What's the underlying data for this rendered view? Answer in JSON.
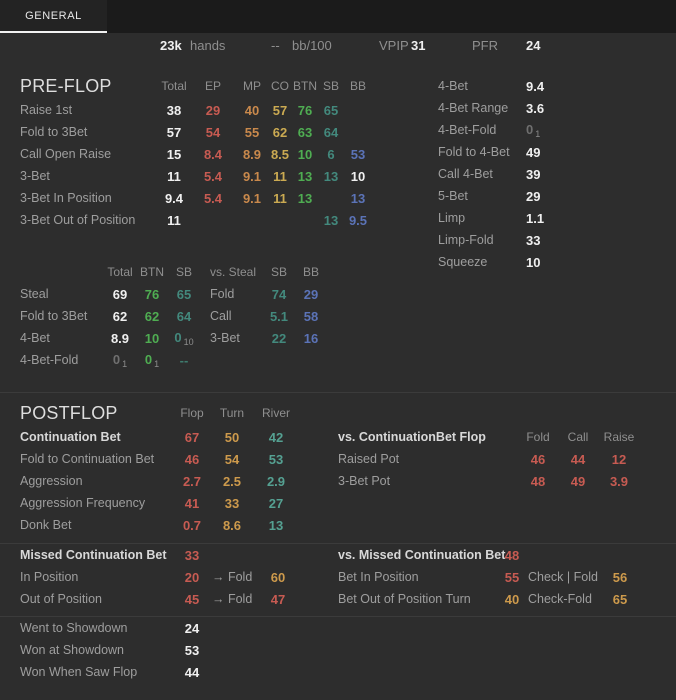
{
  "tab": {
    "label": "GENERAL"
  },
  "summary": {
    "hands_value": "23k",
    "hands_label": "hands",
    "bb100_value": "--",
    "bb100_label": "bb/100",
    "vpip_label": "VPIP",
    "vpip_value": "31",
    "pfr_label": "PFR",
    "pfr_value": "24"
  },
  "palette": {
    "background": "#2d2d2d",
    "tabbar_bg": "#1b1b1b",
    "tab_underline": "#f2f2f2",
    "divider": "#3b3b3b",
    "white_value": "#f0f0f0",
    "label_gray": "#9e9e9e",
    "header_gray": "#8f8f8f",
    "ep_red": "#c75b52",
    "mp_orange": "#c9894c",
    "co_yellow": "#cbaa52",
    "turn_amber": "#cd9a4c",
    "btn_green": "#4fad52",
    "sb_teal": "#43897d",
    "river_teal": "#55a192",
    "bb_blue": "#5b73b7",
    "dim_gray": "#6f6f6f",
    "dim_teal": "#3e7c6e"
  },
  "preflop": {
    "title": "PRE-FLOP",
    "headers": [
      "Total",
      "EP",
      "MP",
      "CO",
      "BTN",
      "SB",
      "BB"
    ],
    "rows": [
      {
        "label": "Raise 1st",
        "cells": [
          [
            "38",
            "W"
          ],
          [
            "29",
            "R"
          ],
          [
            "40",
            "O"
          ],
          [
            "57",
            "Y"
          ],
          [
            "76",
            "G"
          ],
          [
            "65",
            "T"
          ],
          null
        ]
      },
      {
        "label": "Fold to 3Bet",
        "cells": [
          [
            "57",
            "W"
          ],
          [
            "54",
            "R"
          ],
          [
            "55",
            "O"
          ],
          [
            "62",
            "Y"
          ],
          [
            "63",
            "G"
          ],
          [
            "64",
            "T"
          ],
          null
        ]
      },
      {
        "label": "Call Open Raise",
        "cells": [
          [
            "15",
            "W"
          ],
          [
            "8.4",
            "R"
          ],
          [
            "8.9",
            "O"
          ],
          [
            "8.5",
            "Y"
          ],
          [
            "10",
            "G"
          ],
          [
            "6",
            "T"
          ],
          [
            "53",
            "B"
          ]
        ]
      },
      {
        "label": "3-Bet",
        "cells": [
          [
            "11",
            "W"
          ],
          [
            "5.4",
            "R"
          ],
          [
            "9.1",
            "O"
          ],
          [
            "11",
            "Y"
          ],
          [
            "13",
            "G"
          ],
          [
            "13",
            "T"
          ],
          [
            "10",
            "W"
          ]
        ]
      },
      {
        "label": "3-Bet In Position",
        "cells": [
          [
            "9.4",
            "W"
          ],
          [
            "5.4",
            "R"
          ],
          [
            "9.1",
            "O"
          ],
          [
            "11",
            "Y"
          ],
          [
            "13",
            "G"
          ],
          null,
          [
            "13",
            "B"
          ]
        ]
      },
      {
        "label": "3-Bet Out of Position",
        "cells": [
          [
            "11",
            "W"
          ],
          null,
          null,
          null,
          null,
          [
            "13",
            "T"
          ],
          [
            "9.5",
            "B"
          ]
        ]
      }
    ]
  },
  "preflop_right": {
    "rows": [
      {
        "label": "4-Bet",
        "cells": [
          [
            "9.4",
            "W"
          ]
        ]
      },
      {
        "label": "4-Bet Range",
        "cells": [
          [
            "3.6",
            "W"
          ]
        ]
      },
      {
        "label": "4-Bet-Fold",
        "cells": [
          [
            "0",
            "D",
            "1"
          ]
        ]
      },
      {
        "label": "Fold to 4-Bet",
        "cells": [
          [
            "49",
            "W"
          ]
        ]
      },
      {
        "label": "Call 4-Bet",
        "cells": [
          [
            "39",
            "W"
          ]
        ]
      },
      {
        "label": "5-Bet",
        "cells": [
          [
            "29",
            "W"
          ]
        ]
      },
      {
        "label": "Limp",
        "cells": [
          [
            "1.1",
            "W"
          ]
        ]
      },
      {
        "label": "Limp-Fold",
        "cells": [
          [
            "33",
            "W"
          ]
        ]
      },
      {
        "label": "Squeeze",
        "cells": [
          [
            "10",
            "W"
          ]
        ]
      }
    ]
  },
  "steal": {
    "header_label": "",
    "headers": [
      "Total",
      "BTN",
      "SB"
    ],
    "rows": [
      {
        "label": "Steal",
        "cells": [
          [
            "69",
            "W"
          ],
          [
            "76",
            "G"
          ],
          [
            "65",
            "T"
          ]
        ]
      },
      {
        "label": "Fold to 3Bet",
        "cells": [
          [
            "62",
            "W"
          ],
          [
            "62",
            "G"
          ],
          [
            "64",
            "T"
          ]
        ]
      },
      {
        "label": "4-Bet",
        "cells": [
          [
            "8.9",
            "W"
          ],
          [
            "10",
            "G"
          ],
          [
            "0",
            "T",
            "10"
          ]
        ]
      },
      {
        "label": "4-Bet-Fold",
        "cells": [
          [
            "0",
            "D",
            "1"
          ],
          [
            "0",
            "G",
            "1"
          ],
          [
            "--",
            "TD"
          ]
        ]
      }
    ]
  },
  "vs_steal": {
    "header_label": "vs. Steal",
    "headers": [
      "SB",
      "BB"
    ],
    "rows": [
      {
        "label": "Fold",
        "cells": [
          [
            "74",
            "T"
          ],
          [
            "29",
            "B"
          ]
        ]
      },
      {
        "label": "Call",
        "cells": [
          [
            "5.1",
            "T"
          ],
          [
            "58",
            "B"
          ]
        ]
      },
      {
        "label": "3-Bet",
        "cells": [
          [
            "22",
            "T"
          ],
          [
            "16",
            "B"
          ]
        ]
      }
    ]
  },
  "postflop": {
    "title": "POSTFLOP",
    "headers": [
      "Flop",
      "Turn",
      "River"
    ],
    "rows": [
      {
        "label": "Continuation Bet",
        "bold": true,
        "cells": [
          [
            "67",
            "R"
          ],
          [
            "50",
            "A"
          ],
          [
            "42",
            "T2"
          ]
        ]
      },
      {
        "label": "Fold to Continuation Bet",
        "cells": [
          [
            "46",
            "R"
          ],
          [
            "54",
            "A"
          ],
          [
            "53",
            "T2"
          ]
        ]
      },
      {
        "label": "Aggression",
        "cells": [
          [
            "2.7",
            "R"
          ],
          [
            "2.5",
            "A"
          ],
          [
            "2.9",
            "T2"
          ]
        ]
      },
      {
        "label": "Aggression Frequency",
        "cells": [
          [
            "41",
            "R"
          ],
          [
            "33",
            "A"
          ],
          [
            "27",
            "T2"
          ]
        ]
      },
      {
        "label": "Donk Bet",
        "cells": [
          [
            "0.7",
            "R"
          ],
          [
            "8.6",
            "A"
          ],
          [
            "13",
            "T2"
          ]
        ]
      }
    ]
  },
  "vs_cbet": {
    "header_label": "vs. ContinuationBet Flop",
    "header_bold": true,
    "headers": [
      "Fold",
      "Call",
      "Raise"
    ],
    "rows": [
      {
        "label": "Raised Pot",
        "cells": [
          [
            "46",
            "R"
          ],
          [
            "44",
            "R"
          ],
          [
            "12",
            "R"
          ]
        ]
      },
      {
        "label": "3-Bet Pot",
        "cells": [
          [
            "48",
            "R"
          ],
          [
            "49",
            "R"
          ],
          [
            "3.9",
            "R"
          ]
        ]
      }
    ]
  },
  "missed_cb": {
    "rows": [
      {
        "label": "Missed Continuation Bet",
        "bold": true,
        "cells": [
          [
            "33",
            "R"
          ],
          null,
          null
        ]
      },
      {
        "label": "In Position",
        "cells": [
          [
            "20",
            "R"
          ],
          [
            "→ Fold",
            "L"
          ],
          [
            "60",
            "A"
          ]
        ]
      },
      {
        "label": "Out of Position",
        "cells": [
          [
            "45",
            "R"
          ],
          [
            "→ Fold",
            "L"
          ],
          [
            "47",
            "R"
          ]
        ]
      }
    ]
  },
  "vs_missed_cb": {
    "rows": [
      {
        "label": "vs. Missed Continuation Bet",
        "bold": true,
        "cells": [
          [
            "48",
            "R"
          ],
          null,
          null
        ]
      },
      {
        "label": "Bet In Position",
        "cells": [
          [
            "55",
            "R"
          ],
          [
            "Check | Fold",
            "L"
          ],
          [
            "56",
            "A"
          ]
        ]
      },
      {
        "label": "Bet Out of Position Turn",
        "cells": [
          [
            "40",
            "A"
          ],
          [
            "Check-Fold",
            "L"
          ],
          [
            "65",
            "A"
          ]
        ]
      }
    ]
  },
  "showdown": {
    "rows": [
      {
        "label": "Went to Showdown",
        "cells": [
          [
            "24",
            "W"
          ]
        ]
      },
      {
        "label": "Won at Showdown",
        "cells": [
          [
            "53",
            "W"
          ]
        ]
      },
      {
        "label": "Won When Saw Flop",
        "cells": [
          [
            "44",
            "W"
          ]
        ]
      }
    ]
  }
}
